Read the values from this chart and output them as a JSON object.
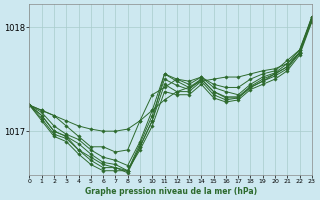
{
  "title": "Graphe pression niveau de la mer (hPa)",
  "bg_color": "#cde8f0",
  "line_color": "#2d6a2d",
  "grid_color": "#a8cccc",
  "series": [
    [
      1017.25,
      1017.2,
      1017.15,
      1017.05,
      1016.95,
      1016.85,
      1016.85,
      1016.8,
      1016.82,
      1017.1,
      1017.35,
      1017.42,
      1017.5,
      1017.48,
      1017.52,
      1017.45,
      1017.42,
      1017.42,
      1017.5,
      1017.55,
      1017.58,
      1017.68,
      1017.78,
      1018.1
    ],
    [
      1017.25,
      1017.18,
      1017.05,
      1016.97,
      1016.92,
      1016.82,
      1016.75,
      1016.72,
      1016.67,
      1016.9,
      1017.2,
      1017.55,
      1017.5,
      1017.45,
      1017.52,
      1017.42,
      1017.38,
      1017.35,
      1017.45,
      1017.52,
      1017.56,
      1017.65,
      1017.78,
      1018.08
    ],
    [
      1017.25,
      1017.15,
      1017.0,
      1016.95,
      1016.88,
      1016.78,
      1016.7,
      1016.68,
      1016.62,
      1016.88,
      1017.15,
      1017.5,
      1017.44,
      1017.4,
      1017.5,
      1017.38,
      1017.33,
      1017.33,
      1017.43,
      1017.5,
      1017.55,
      1017.62,
      1017.76,
      1018.07
    ],
    [
      1017.25,
      1017.12,
      1016.97,
      1016.93,
      1016.82,
      1016.72,
      1016.65,
      1016.65,
      1016.6,
      1016.85,
      1017.1,
      1017.45,
      1017.38,
      1017.38,
      1017.48,
      1017.35,
      1017.3,
      1017.32,
      1017.42,
      1017.48,
      1017.53,
      1017.6,
      1017.75,
      1018.06
    ],
    [
      1017.25,
      1017.1,
      1016.95,
      1016.9,
      1016.78,
      1016.68,
      1016.62,
      1016.62,
      1016.62,
      1016.82,
      1017.05,
      1017.38,
      1017.35,
      1017.35,
      1017.45,
      1017.32,
      1017.28,
      1017.3,
      1017.4,
      1017.45,
      1017.5,
      1017.58,
      1017.73,
      1018.05
    ]
  ],
  "line1": [
    1017.25,
    1017.2,
    1017.15,
    1017.1,
    1017.05,
    1017.02,
    1017.0,
    1017.0,
    1017.02,
    1017.1,
    1017.2,
    1017.3,
    1017.38,
    1017.42,
    1017.48,
    1017.5,
    1017.52,
    1017.52,
    1017.55,
    1017.58,
    1017.6,
    1017.65,
    1017.75,
    1018.1
  ],
  "line2": [
    1017.25,
    1017.15,
    1017.0,
    1016.95,
    1016.82,
    1016.75,
    1016.68,
    1016.65,
    1016.62,
    1016.85,
    1017.1,
    1017.55,
    1017.48,
    1017.42,
    1017.5,
    1017.38,
    1017.32,
    1017.32,
    1017.42,
    1017.48,
    1017.55,
    1017.62,
    1017.75,
    1018.08
  ],
  "xlim": [
    0,
    23
  ],
  "ylim": [
    1016.58,
    1018.22
  ],
  "yticks": [
    1017,
    1018
  ],
  "xticks": [
    0,
    1,
    2,
    3,
    4,
    5,
    6,
    7,
    8,
    9,
    10,
    11,
    12,
    13,
    14,
    15,
    16,
    17,
    18,
    19,
    20,
    21,
    22,
    23
  ]
}
